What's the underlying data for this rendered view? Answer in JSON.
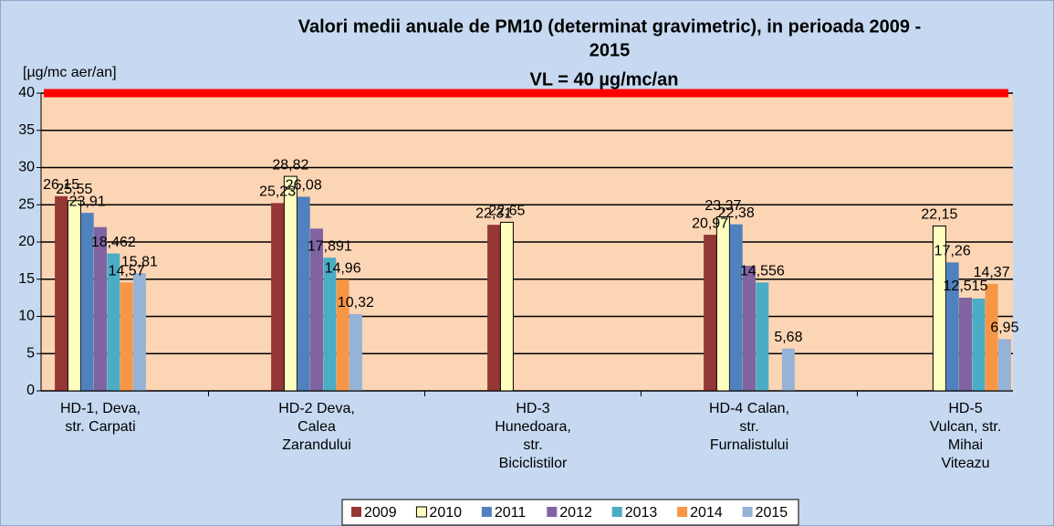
{
  "chart_data": {
    "type": "bar",
    "title": [
      "Valori medii anuale de PM10 (determinat gravimetric), in perioada 2009 -",
      "2015"
    ],
    "subtitle": "VL = 40 µg/mc/an",
    "y_label": "[µg/mc aer/an]",
    "categories": [
      [
        "HD-1, Deva,",
        "str. Carpati"
      ],
      [
        "HD-2 Deva,",
        "Calea",
        "Zarandului"
      ],
      [
        "HD-3",
        "Hunedoara,",
        "str.",
        "Biciclistilor"
      ],
      [
        "HD-4 Calan,",
        "str.",
        "Furnalistului"
      ],
      [
        "HD-5",
        "Vulcan, str.",
        "Mihai",
        "Viteazu"
      ]
    ],
    "series": [
      {
        "name": "2009",
        "color": "#953735",
        "values": [
          26.15,
          25.23,
          22.31,
          20.97,
          null
        ],
        "value_labels": [
          "26,15",
          "25,23",
          "22,31",
          "20,97",
          null
        ]
      },
      {
        "name": "2010",
        "color": "#ffffc0",
        "values": [
          25.55,
          28.82,
          22.65,
          23.37,
          22.15
        ],
        "value_labels": [
          "25,55",
          "28,82",
          "22,65",
          "23,37",
          "22,15"
        ]
      },
      {
        "name": "2011",
        "color": "#4f81bd",
        "values": [
          23.91,
          26.08,
          null,
          22.38,
          17.26
        ],
        "value_labels": [
          "23,91",
          "26,08",
          null,
          "22,38",
          "17,26"
        ]
      },
      {
        "name": "2012",
        "color": "#8064a2",
        "values": [
          22,
          21.8,
          null,
          16.8,
          12.515
        ],
        "value_labels": [
          null,
          null,
          null,
          null,
          "12,515"
        ]
      },
      {
        "name": "2013",
        "color": "#4bacc6",
        "values": [
          18.462,
          17.891,
          null,
          14.556,
          12.4
        ],
        "value_labels": [
          "18,462",
          "17,891",
          null,
          "14,556",
          null
        ]
      },
      {
        "name": "2014",
        "color": "#f79646",
        "values": [
          14.57,
          14.96,
          null,
          null,
          14.37
        ],
        "value_labels": [
          "14,57",
          "14,96",
          null,
          null,
          "14,37"
        ]
      },
      {
        "name": "2015",
        "color": "#95b3d7",
        "values": [
          15.81,
          10.32,
          null,
          5.68,
          6.95
        ],
        "value_labels": [
          "15,81",
          "10,32",
          null,
          "5,68",
          "6,95"
        ]
      }
    ],
    "ylim": [
      0,
      40
    ],
    "yticks": [
      0,
      5,
      10,
      15,
      20,
      25,
      30,
      35,
      40
    ],
    "grid": true,
    "limit_line": 40,
    "limit_color": "#ff0000",
    "legend": "bottom"
  }
}
